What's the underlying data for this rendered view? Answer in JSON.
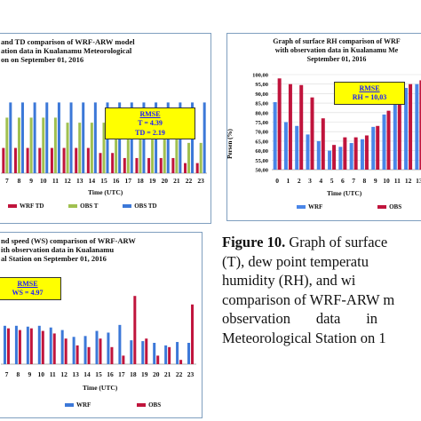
{
  "chart_data": [
    {
      "type": "bar",
      "title_lines": [
        "and TD comparison of WRF-ARW model",
        "ation data in Kualanamu Meteorological",
        "on on September 01, 2016"
      ],
      "xlabel": "Time (UTC)",
      "categories": [
        "7",
        "8",
        "9",
        "10",
        "11",
        "12",
        "13",
        "14",
        "15",
        "16",
        "17",
        "18",
        "19",
        "20",
        "21",
        "22",
        "23"
      ],
      "series": [
        {
          "name": "WRF TD",
          "color": "#c0143c",
          "values": [
            22,
            22,
            22,
            22,
            22,
            22,
            22,
            22,
            21,
            21,
            20,
            20,
            20,
            20,
            20,
            19,
            19
          ]
        },
        {
          "name": "OBS T",
          "color": "#a0c050",
          "values": [
            28,
            28,
            28,
            28,
            28,
            27,
            27,
            27,
            27,
            26,
            26,
            25,
            24,
            24,
            24,
            23,
            23
          ]
        },
        {
          "name": "OBS TD",
          "color": "#3c78d8",
          "values": [
            31,
            31,
            31,
            31,
            31,
            31,
            31,
            31,
            31,
            31,
            31,
            31,
            31,
            31,
            31,
            31,
            31
          ]
        }
      ],
      "ylim": [
        17,
        33
      ],
      "rmse": {
        "heading": "RMSE",
        "lines": [
          "T = 4.39",
          "TD = 2.19"
        ]
      }
    },
    {
      "type": "bar",
      "title_lines": [
        "Graph of surface RH comparison of WRF",
        "with observation data in Kualanamu Me",
        "September 01, 2016"
      ],
      "xlabel": "Time (UTC)",
      "ylabel": "Persen (%)",
      "yticks": [
        "100,00",
        "95,00",
        "90,00",
        "85,00",
        "80,00",
        "75,00",
        "70,00",
        "65,00",
        "60,00",
        "55,00",
        "50,00"
      ],
      "categories": [
        "0",
        "1",
        "2",
        "3",
        "4",
        "5",
        "6",
        "7",
        "8",
        "9",
        "10",
        "11",
        "12",
        "13"
      ],
      "series": [
        {
          "name": "WRF",
          "color": "#4a86e8",
          "values": [
            85.5,
            75,
            73,
            68.5,
            65,
            60,
            62,
            64,
            66,
            72.5,
            79,
            91,
            93,
            95
          ]
        },
        {
          "name": "OBS",
          "color": "#c0143c",
          "values": [
            98,
            95,
            94.5,
            88,
            77,
            63,
            67,
            67,
            68,
            73,
            81,
            85,
            95,
            97
          ]
        }
      ],
      "ylim": [
        50,
        100
      ],
      "rmse": {
        "heading": "RMSE",
        "lines": [
          "RH = 10,03"
        ]
      }
    },
    {
      "type": "bar",
      "title_lines": [
        "nd speed (WS) comparison of WRF-ARW",
        "ith observation data in Kualanamu",
        "al Station on September 01, 2016"
      ],
      "xlabel": "Time (UTC)",
      "categories": [
        "7",
        "8",
        "9",
        "10",
        "11",
        "12",
        "13",
        "14",
        "15",
        "16",
        "17",
        "18",
        "19",
        "20",
        "21",
        "22",
        "23"
      ],
      "series": [
        {
          "name": "WRF",
          "color": "#3c78d8",
          "values": [
            4.5,
            4.5,
            4.4,
            4.5,
            4.3,
            4.0,
            3.2,
            3.3,
            3.9,
            3.7,
            4.6,
            2.8,
            2.7,
            2.5,
            2.2,
            2.6,
            2.5
          ]
        },
        {
          "name": "OBS",
          "color": "#c0143c",
          "values": [
            4.2,
            4.0,
            4.2,
            3.9,
            3.6,
            3.0,
            2.2,
            2.0,
            3.0,
            2.0,
            1.0,
            8.0,
            3.0,
            1.0,
            2.0,
            0.5,
            7.0
          ]
        }
      ],
      "ylim": [
        0,
        10
      ],
      "rmse": {
        "heading": "RMSE",
        "lines": [
          "WS = 4.97"
        ]
      }
    }
  ],
  "caption": {
    "label": "Figure 10.",
    "lines": [
      " Graph of surface",
      "(T), dew point temperatu",
      "humidity (RH), and wi",
      "comparison of WRF-ARW m",
      "observation       data       in",
      "Meteorological Station on 1"
    ]
  }
}
